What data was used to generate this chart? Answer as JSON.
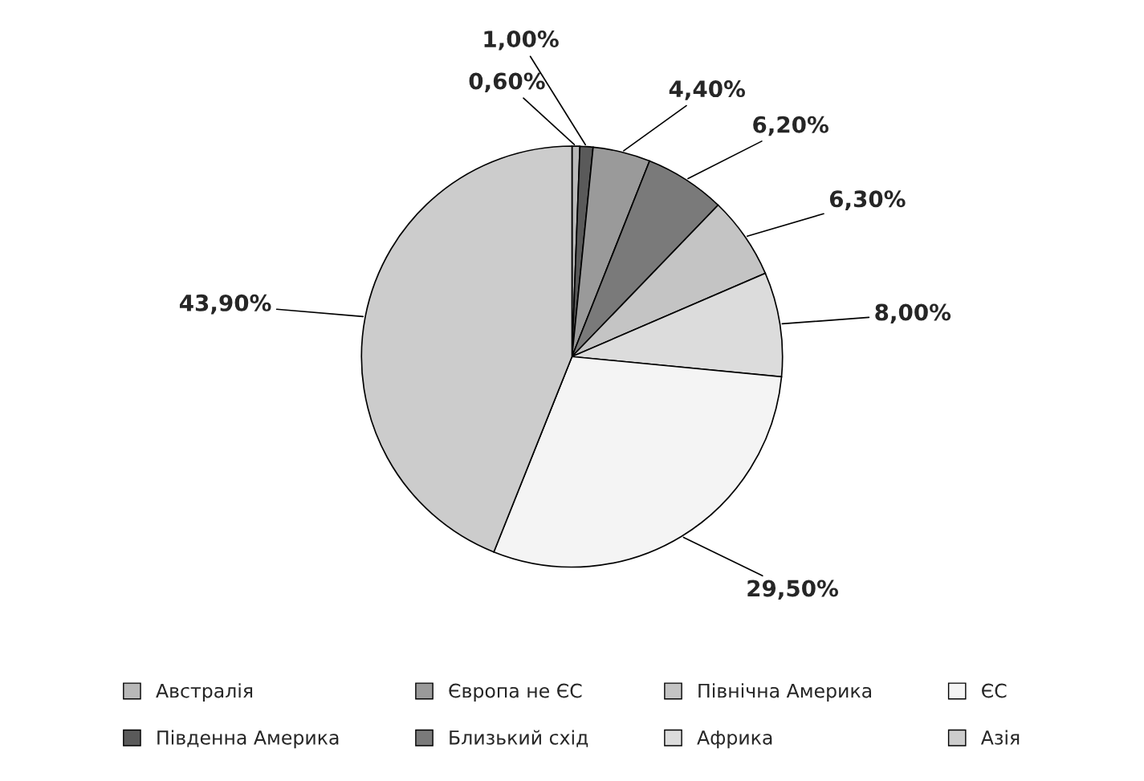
{
  "chart_data": {
    "type": "pie",
    "categories": [
      "Австралія",
      "Південна Америка",
      "Європа не ЄС",
      "Близький схід",
      "Північна Америка",
      "Африка",
      "ЄС",
      "Азія"
    ],
    "values": [
      0.6,
      1.0,
      4.4,
      6.2,
      6.3,
      8.0,
      29.5,
      43.9
    ],
    "value_labels": [
      "0,60%",
      "1,00%",
      "4,40%",
      "6,20%",
      "6,30%",
      "8,00%",
      "29,50%",
      "43,90%"
    ],
    "colors": [
      "#b8b8b8",
      "#5a5a5a",
      "#9a9a9a",
      "#7a7a7a",
      "#c4c4c4",
      "#dcdcdc",
      "#f4f4f4",
      "#cccccc"
    ],
    "legend": "bottom"
  }
}
